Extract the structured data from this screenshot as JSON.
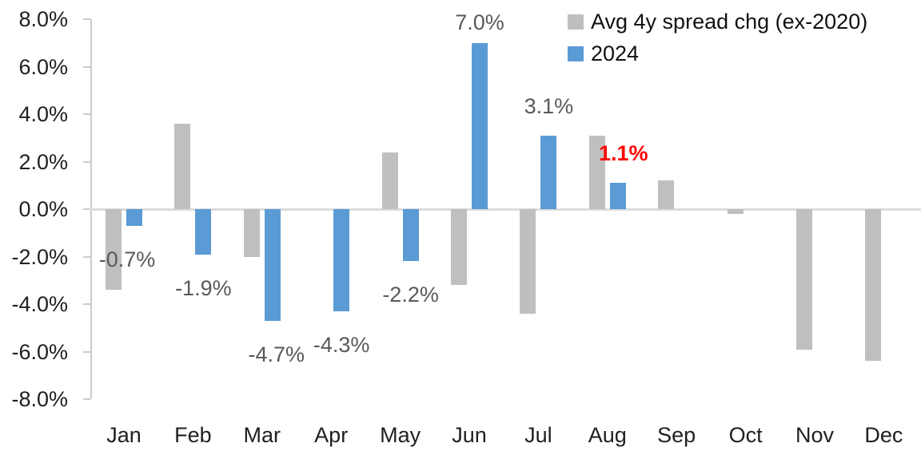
{
  "chart_data": {
    "type": "bar",
    "title": "",
    "categories": [
      "Jan",
      "Feb",
      "Mar",
      "Apr",
      "May",
      "Jun",
      "Jul",
      "Aug",
      "Sep",
      "Oct",
      "Nov",
      "Dec"
    ],
    "series": [
      {
        "name": "Avg 4y spread chg (ex-2020)",
        "color": "#bfbfbf",
        "values": [
          -3.4,
          3.6,
          -2.0,
          0.0,
          2.4,
          -3.2,
          -4.4,
          3.1,
          1.2,
          -0.2,
          -5.9,
          -6.4
        ]
      },
      {
        "name": "2024",
        "color": "#5b9bd5",
        "values": [
          -0.7,
          -1.9,
          -4.7,
          -4.3,
          -2.2,
          7.0,
          3.1,
          1.1,
          null,
          null,
          null,
          null
        ],
        "labels": [
          "-0.7%",
          "-1.9%",
          "-4.7%",
          "-4.3%",
          "-2.2%",
          "7.0%",
          "3.1%",
          "1.1%",
          "",
          "",
          "",
          ""
        ]
      }
    ],
    "xlabel": "",
    "ylabel": "",
    "ylim": [
      -8,
      8
    ],
    "ytick_step": 2,
    "yticklabels": [
      "8.0%",
      "6.0%",
      "4.0%",
      "2.0%",
      "0.0%",
      "-2.0%",
      "-4.0%",
      "-6.0%",
      "-8.0%"
    ],
    "grid": "zero-line-only",
    "legend_position": "top-right",
    "data_label_color": "#595959",
    "highlight_label": {
      "index": 7,
      "text": "1.1%",
      "color": "#ff0000",
      "bold": true
    }
  }
}
